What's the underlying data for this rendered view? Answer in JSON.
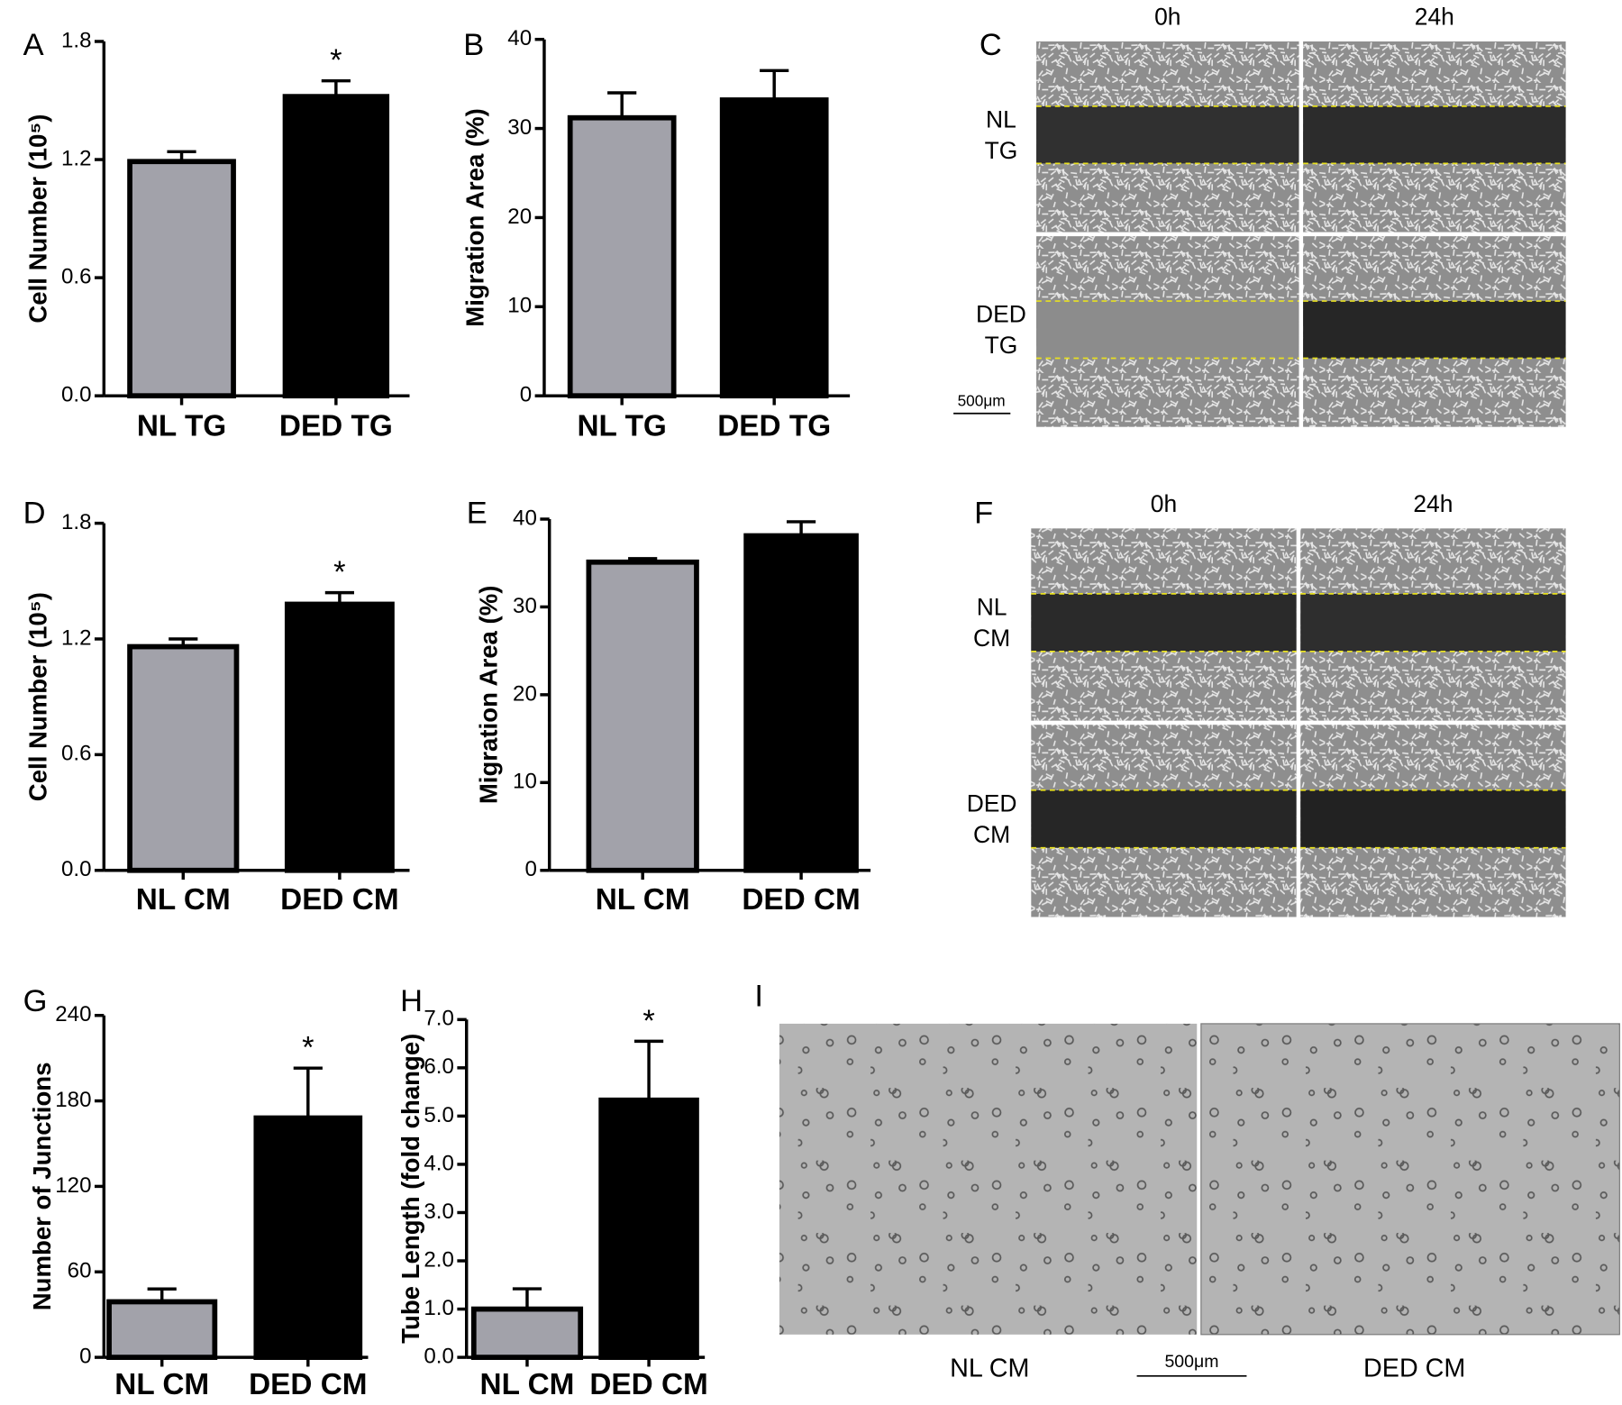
{
  "chart_data": [
    {
      "type": "bar",
      "panel_label": "A",
      "ylabel": "Cell Number (10⁵)",
      "categories": [
        "NL TG",
        "DED TG"
      ],
      "values": [
        1.19,
        1.52
      ],
      "errors": [
        0.05,
        0.08
      ],
      "colors": [
        "#a2a2aa",
        "#000000"
      ],
      "ylim": [
        0,
        1.8
      ],
      "yticks": [
        {
          "value": 0,
          "label": "0.0"
        },
        0.6,
        1.2,
        1.8
      ],
      "annotation": "*"
    },
    {
      "type": "bar",
      "panel_label": "B",
      "ylabel": "Migration Area (%)",
      "categories": [
        "NL TG",
        "DED TG"
      ],
      "values": [
        31.2,
        33.2
      ],
      "errors": [
        2.8,
        3.3
      ],
      "colors": [
        "#a2a2aa",
        "#000000"
      ],
      "ylim": [
        0,
        40
      ],
      "yticks": [
        0,
        10,
        20,
        30,
        40
      ]
    },
    {
      "type": "bar",
      "panel_label": "D",
      "ylabel": "Cell Number (10⁵)",
      "categories": [
        "NL CM",
        "DED CM"
      ],
      "values": [
        1.16,
        1.38
      ],
      "errors": [
        0.04,
        0.06
      ],
      "colors": [
        "#a2a2aa",
        "#000000"
      ],
      "ylim": [
        0,
        1.8
      ],
      "yticks": [
        {
          "value": 0,
          "label": "0.0"
        },
        0.6,
        1.2,
        1.8
      ],
      "annotation": "*"
    },
    {
      "type": "bar",
      "panel_label": "E",
      "ylabel": "Migration Area (%)",
      "categories": [
        "NL CM",
        "DED CM"
      ],
      "values": [
        35.1,
        38.1
      ],
      "errors": [
        0.4,
        1.6
      ],
      "colors": [
        "#a2a2aa",
        "#000000"
      ],
      "ylim": [
        0,
        40
      ],
      "yticks": [
        0,
        10,
        20,
        30,
        40
      ]
    },
    {
      "type": "bar",
      "panel_label": "G",
      "ylabel": "Number of Junctions",
      "categories": [
        "NL CM",
        "DED CM"
      ],
      "values": [
        39,
        168
      ],
      "errors": [
        9,
        35
      ],
      "colors": [
        "#a2a2aa",
        "#000000"
      ],
      "ylim": [
        0,
        240
      ],
      "yticks": [
        0,
        60,
        120,
        180,
        240
      ],
      "annotation": "*"
    },
    {
      "type": "bar",
      "panel_label": "H",
      "ylabel": "Tube Length (fold change)",
      "categories": [
        "NL CM",
        "DED CM"
      ],
      "values": [
        1.0,
        5.33
      ],
      "errors": [
        0.42,
        1.22
      ],
      "colors": [
        "#a2a2aa",
        "#000000"
      ],
      "ylim": [
        0,
        7
      ],
      "yticks": [
        {
          "value": 0,
          "label": "0.0"
        },
        {
          "value": 1,
          "label": "1.0"
        },
        {
          "value": 2,
          "label": "2.0"
        },
        {
          "value": 3,
          "label": "3.0"
        },
        {
          "value": 4,
          "label": "4.0"
        },
        {
          "value": 5,
          "label": "5.0"
        },
        {
          "value": 6,
          "label": "6.0"
        },
        {
          "value": 7,
          "label": "7.0"
        }
      ],
      "annotation": "*"
    }
  ],
  "image_panels": [
    {
      "label": "C",
      "columns": [
        "0h",
        "24h"
      ],
      "rows": [
        [
          "NL",
          "TG"
        ],
        [
          "DED",
          "TG"
        ]
      ],
      "scale_bar": "500μm"
    },
    {
      "label": "F",
      "columns": [
        "0h",
        "24h"
      ],
      "rows": [
        [
          "NL",
          "CM"
        ],
        [
          "DED",
          "CM"
        ]
      ]
    },
    {
      "label": "I",
      "captions": [
        "NL CM",
        "DED CM"
      ],
      "scale_bar": "500μm"
    }
  ]
}
